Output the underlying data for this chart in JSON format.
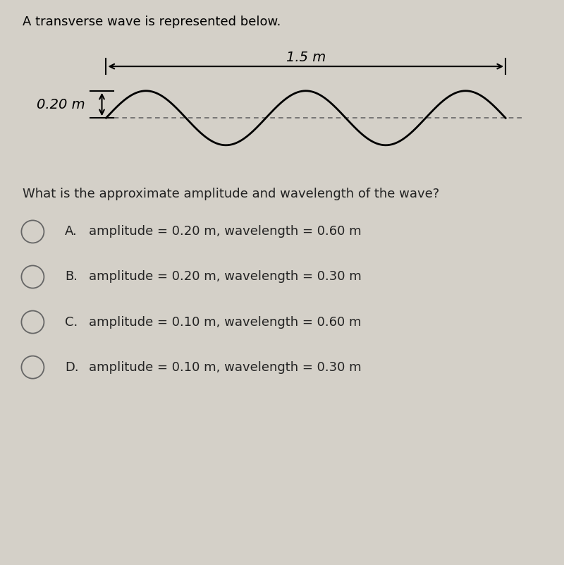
{
  "title": "A transverse wave is represented below.",
  "background_color": "#d4d0c8",
  "wave_color": "#000000",
  "dashed_color": "#666666",
  "arrow_color": "#000000",
  "wavelength_label": "1.5 m",
  "amplitude_label": "0.20 m",
  "question": "What is the approximate amplitude and wavelength of the wave?",
  "choices": [
    {
      "label": "A.",
      "text": "amplitude = 0.20 m, wavelength = 0.60 m"
    },
    {
      "label": "B.",
      "text": "amplitude = 0.20 m, wavelength = 0.30 m"
    },
    {
      "label": "C.",
      "text": "amplitude = 0.10 m, wavelength = 0.60 m"
    },
    {
      "label": "D.",
      "text": "amplitude = 0.10 m, wavelength = 0.30 m"
    }
  ],
  "title_fontsize": 13,
  "question_fontsize": 13,
  "choice_fontsize": 13,
  "label_fontsize": 13,
  "wave_x_start": 1.5,
  "wave_x_end": 9.2,
  "num_cycles": 2.5,
  "wave_amplitude": 1.0,
  "xlim": [
    0,
    10
  ],
  "ylim": [
    -2.0,
    3.2
  ]
}
